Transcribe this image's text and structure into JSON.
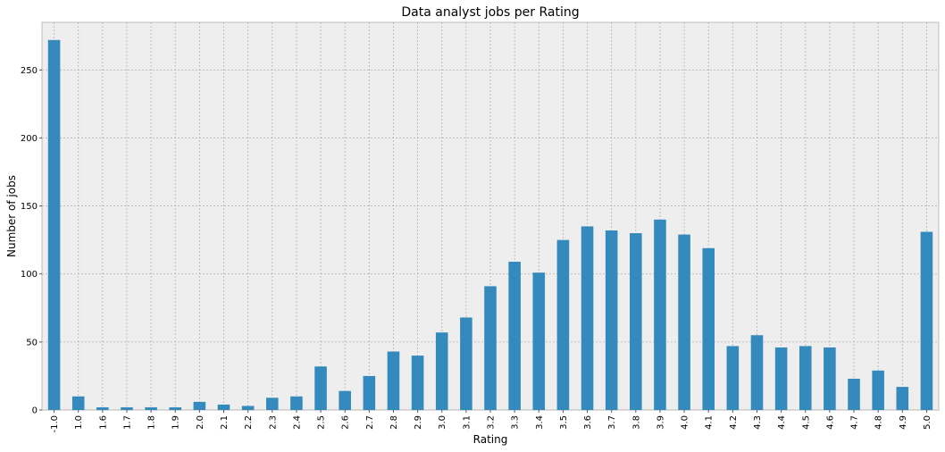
{
  "chart_data": {
    "type": "bar",
    "title": "Data analyst jobs per Rating",
    "xlabel": "Rating",
    "ylabel": "Number of jobs",
    "categories": [
      "-1.0",
      "1.0",
      "1.6",
      "1.7",
      "1.8",
      "1.9",
      "2.0",
      "2.1",
      "2.2",
      "2.3",
      "2.4",
      "2.5",
      "2.6",
      "2.7",
      "2.8",
      "2.9",
      "3.0",
      "3.1",
      "3.2",
      "3.3",
      "3.4",
      "3.5",
      "3.6",
      "3.7",
      "3.8",
      "3.9",
      "4.0",
      "4.1",
      "4.2",
      "4.3",
      "4.4",
      "4.5",
      "4.6",
      "4.7",
      "4.8",
      "4.9",
      "5.0"
    ],
    "values": [
      272,
      10,
      2,
      2,
      2,
      2,
      6,
      4,
      3,
      9,
      10,
      32,
      14,
      25,
      43,
      40,
      57,
      68,
      91,
      109,
      101,
      125,
      135,
      132,
      130,
      140,
      129,
      119,
      47,
      55,
      46,
      47,
      46,
      23,
      29,
      17,
      131
    ],
    "ylim": [
      0,
      285
    ],
    "yticks": [
      0,
      50,
      100,
      150,
      200,
      250
    ],
    "grid": true,
    "bar_color": "#348ABD",
    "plot_background": "#EEEEEE",
    "grid_color": "#B2B2B2"
  }
}
